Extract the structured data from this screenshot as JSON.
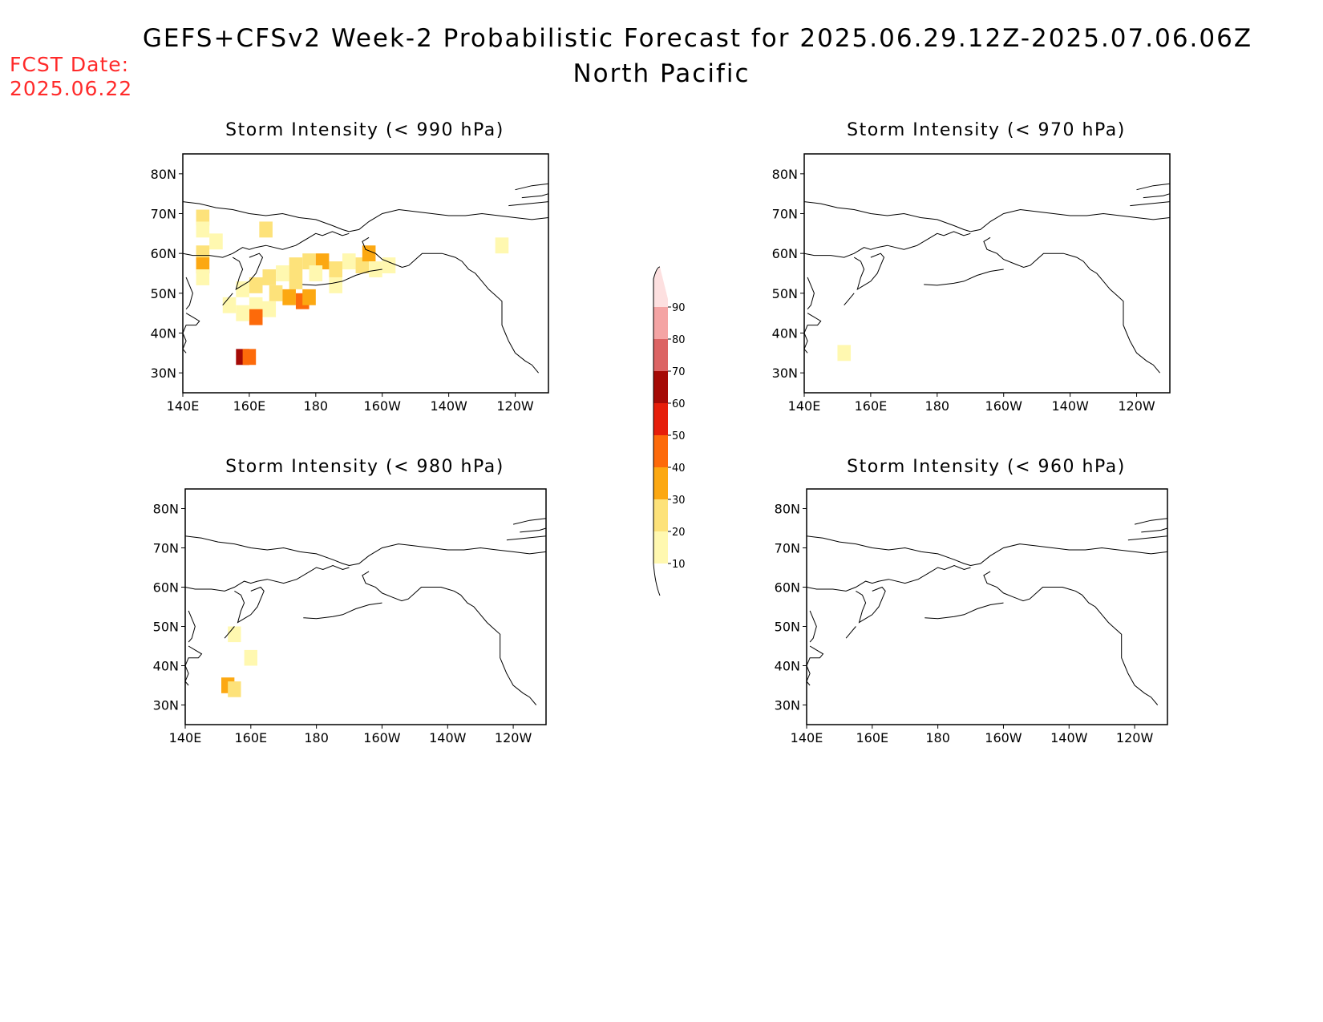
{
  "header": {
    "title_line1": "GEFS+CFSv2 Week-2 Probabilistic Forecast for 2025.06.29.12Z-2025.07.06.06Z",
    "title_line2": "North Pacific",
    "fcst_label": "FCST Date:",
    "fcst_date": "2025.06.22"
  },
  "panels": [
    {
      "title": "Storm Intensity (< 990 hPa)",
      "field": "p990"
    },
    {
      "title": "Storm Intensity (< 970 hPa)",
      "field": "p970"
    },
    {
      "title": "Storm Intensity (< 980 hPa)",
      "field": "p980"
    },
    {
      "title": "Storm Intensity (< 960 hPa)",
      "field": "p960"
    }
  ],
  "axes": {
    "lat_ticks": [
      "80N",
      "70N",
      "60N",
      "50N",
      "40N",
      "30N"
    ],
    "lat_values": [
      80,
      70,
      60,
      50,
      40,
      30
    ],
    "lon_ticks": [
      "140E",
      "160E",
      "180",
      "160W",
      "140W",
      "120W"
    ],
    "lon_values": [
      140,
      160,
      180,
      200,
      220,
      240
    ],
    "lon_range": [
      140,
      250
    ],
    "lat_range": [
      25,
      85
    ]
  },
  "colorbar": {
    "levels": [
      "10",
      "20",
      "30",
      "40",
      "50",
      "60",
      "70",
      "80",
      "90"
    ],
    "colors": [
      "#fff8b0",
      "#fde27a",
      "#fca812",
      "#fd6a0a",
      "#e61e0a",
      "#a50a06",
      "#dc6464",
      "#f4a4a4",
      "#fde0e0"
    ]
  },
  "probability_cells": {
    "p990": [
      {
        "lon": 146,
        "lat": 69,
        "v": 20
      },
      {
        "lon": 146,
        "lat": 66,
        "v": 10
      },
      {
        "lon": 150,
        "lat": 63,
        "v": 10
      },
      {
        "lon": 146,
        "lat": 60,
        "v": 20
      },
      {
        "lon": 146,
        "lat": 57,
        "v": 30
      },
      {
        "lon": 146,
        "lat": 54,
        "v": 10
      },
      {
        "lon": 165,
        "lat": 66,
        "v": 20
      },
      {
        "lon": 158,
        "lat": 51,
        "v": 10
      },
      {
        "lon": 162,
        "lat": 52,
        "v": 20
      },
      {
        "lon": 166,
        "lat": 54,
        "v": 20
      },
      {
        "lon": 170,
        "lat": 55,
        "v": 10
      },
      {
        "lon": 174,
        "lat": 57,
        "v": 20
      },
      {
        "lon": 178,
        "lat": 58,
        "v": 20
      },
      {
        "lon": 182,
        "lat": 58,
        "v": 30
      },
      {
        "lon": 186,
        "lat": 56,
        "v": 20
      },
      {
        "lon": 190,
        "lat": 58,
        "v": 10
      },
      {
        "lon": 194,
        "lat": 57,
        "v": 20
      },
      {
        "lon": 196,
        "lat": 60,
        "v": 30
      },
      {
        "lon": 198,
        "lat": 56,
        "v": 10
      },
      {
        "lon": 180,
        "lat": 55,
        "v": 10
      },
      {
        "lon": 186,
        "lat": 52,
        "v": 10
      },
      {
        "lon": 174,
        "lat": 53,
        "v": 20
      },
      {
        "lon": 168,
        "lat": 50,
        "v": 20
      },
      {
        "lon": 172,
        "lat": 49,
        "v": 30
      },
      {
        "lon": 176,
        "lat": 48,
        "v": 40
      },
      {
        "lon": 178,
        "lat": 49,
        "v": 30
      },
      {
        "lon": 162,
        "lat": 47,
        "v": 10
      },
      {
        "lon": 166,
        "lat": 46,
        "v": 10
      },
      {
        "lon": 162,
        "lat": 44,
        "v": 40
      },
      {
        "lon": 158,
        "lat": 34,
        "v": 60
      },
      {
        "lon": 160,
        "lat": 34,
        "v": 40
      },
      {
        "lon": 154,
        "lat": 47,
        "v": 10
      },
      {
        "lon": 158,
        "lat": 45,
        "v": 10
      },
      {
        "lon": 202,
        "lat": 57,
        "v": 10
      },
      {
        "lon": 236,
        "lat": 62,
        "v": 10
      }
    ],
    "p980": [
      {
        "lon": 155,
        "lat": 48,
        "v": 10
      },
      {
        "lon": 160,
        "lat": 42,
        "v": 10
      },
      {
        "lon": 153,
        "lat": 35,
        "v": 30
      },
      {
        "lon": 155,
        "lat": 34,
        "v": 20
      }
    ],
    "p970": [
      {
        "lon": 152,
        "lat": 35,
        "v": 10
      }
    ],
    "p960": []
  }
}
